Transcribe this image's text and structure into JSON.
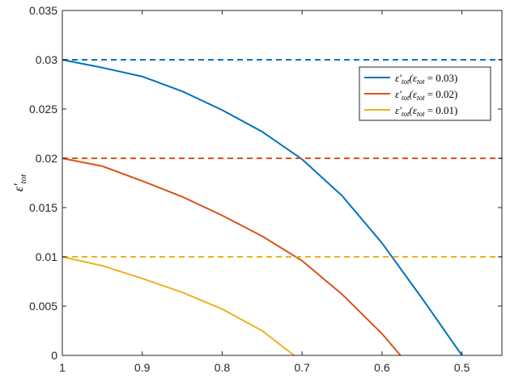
{
  "chart_data": {
    "type": "line",
    "title": "",
    "xlabel": "",
    "ylabel": "ε′tot",
    "x_reversed": true,
    "xlim": [
      0.45,
      1.0
    ],
    "ylim": [
      0,
      0.035
    ],
    "xticks": [
      1,
      0.9,
      0.8,
      0.7,
      0.6,
      0.5
    ],
    "xtick_labels": [
      "1",
      "0.9",
      "0.8",
      "0.7",
      "0.6",
      "0.5"
    ],
    "yticks": [
      0,
      0.005,
      0.01,
      0.015,
      0.02,
      0.025,
      0.03,
      0.035
    ],
    "ytick_labels": [
      "0",
      "0.005",
      "0.01",
      "0.015",
      "0.02",
      "0.025",
      "0.03",
      "0.035"
    ],
    "grid": false,
    "legend_position": "top-right",
    "series": [
      {
        "name": "ε′tot(εtot = 0.03)",
        "color": "#0072BD",
        "style": "solid",
        "x": [
          1.0,
          0.95,
          0.9,
          0.85,
          0.8,
          0.75,
          0.7,
          0.65,
          0.6,
          0.55,
          0.5
        ],
        "y": [
          0.03,
          0.0292,
          0.0283,
          0.0268,
          0.0249,
          0.0227,
          0.0199,
          0.0162,
          0.0114,
          0.0058,
          0.0
        ]
      },
      {
        "name": "ε′tot(εtot = 0.02)",
        "color": "#D95319",
        "style": "solid",
        "x": [
          1.0,
          0.95,
          0.9,
          0.85,
          0.8,
          0.75,
          0.7,
          0.65,
          0.6,
          0.577
        ],
        "y": [
          0.02,
          0.0192,
          0.0177,
          0.0161,
          0.0142,
          0.0121,
          0.0096,
          0.0062,
          0.0022,
          0.0
        ]
      },
      {
        "name": "ε′tot(εtot = 0.01)",
        "color": "#EDB120",
        "style": "solid",
        "x": [
          1.0,
          0.95,
          0.9,
          0.85,
          0.8,
          0.75,
          0.71
        ],
        "y": [
          0.01,
          0.0091,
          0.0078,
          0.0064,
          0.0047,
          0.0025,
          0.0
        ]
      },
      {
        "name": "",
        "color": "#0072BD",
        "style": "dashed",
        "x": [
          1.0,
          0.45
        ],
        "y": [
          0.03,
          0.03
        ]
      },
      {
        "name": "",
        "color": "#D95319",
        "style": "dashed",
        "x": [
          1.0,
          0.45
        ],
        "y": [
          0.02,
          0.02
        ]
      },
      {
        "name": "",
        "color": "#EDB120",
        "style": "dashed",
        "x": [
          1.0,
          0.45
        ],
        "y": [
          0.01,
          0.01
        ]
      }
    ],
    "legend": [
      {
        "label": "ε′tot(εtot = 0.03)",
        "color": "#0072BD"
      },
      {
        "label": "ε′tot(εtot = 0.02)",
        "color": "#D95319"
      },
      {
        "label": "ε′tot(εtot = 0.01)",
        "color": "#EDB120"
      }
    ]
  }
}
